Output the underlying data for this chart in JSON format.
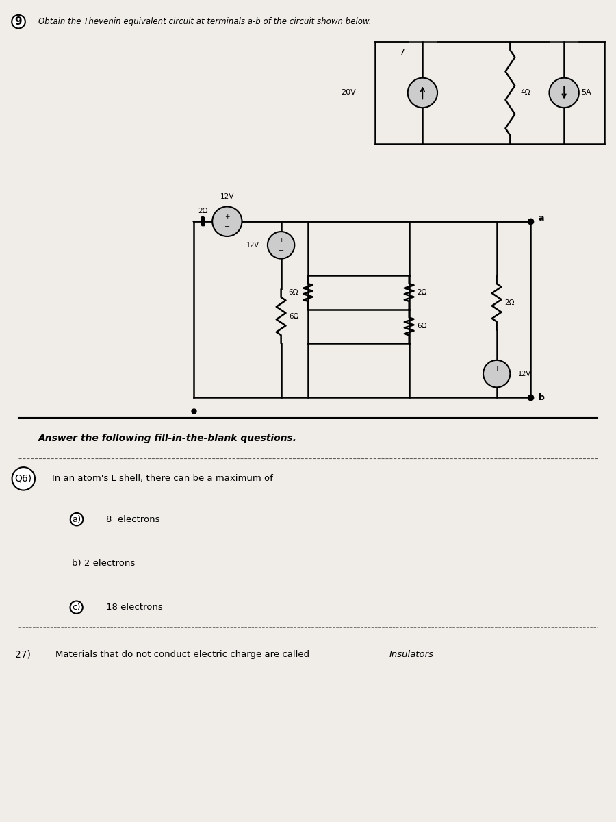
{
  "bg_color": "#f0ede8",
  "title_q9": "9  Obtain the Thevenin equivalent circuit at terminals a-b of the circuit shown below.",
  "title_fill_blank": "Answer the following fill-in-the-blank questions.",
  "q6_text": "Q6)  In an atom’s L shell, there can be a maximum of",
  "q6a_text": "a)  8 electrons",
  "q6b_text": "b) 2 electrons",
  "q6c_text": "c) 18 electrons",
  "q7_text": "27) Materials that do not conduct electric charge are called   Insulators",
  "circuit_bg": "#e8e5e0"
}
